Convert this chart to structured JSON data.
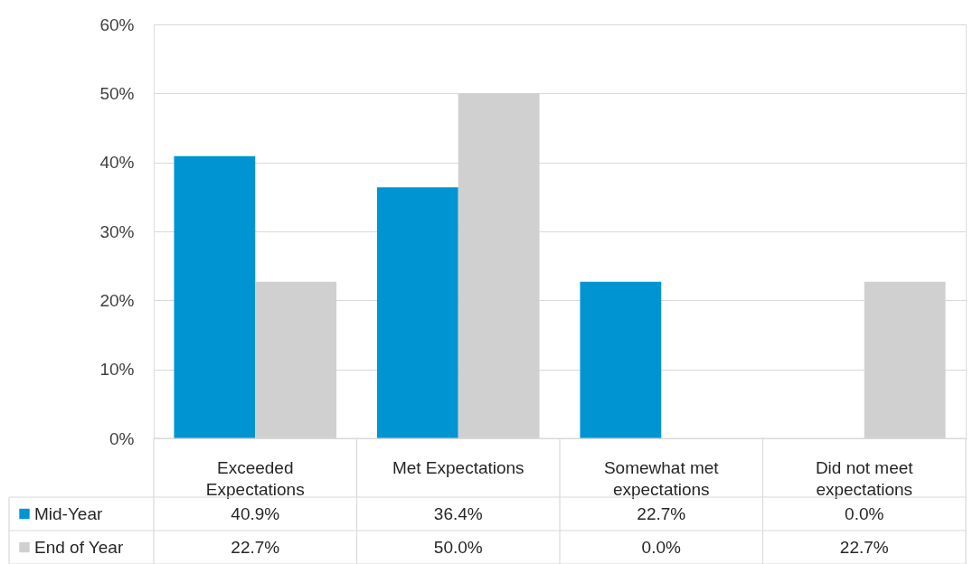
{
  "chart_data": {
    "type": "bar",
    "categories": [
      "Exceeded Expectations",
      "Met Expectations",
      "Somewhat met expectations",
      "Did not meet expectations"
    ],
    "series": [
      {
        "name": "Mid-Year",
        "color": "#0094d2",
        "values": [
          40.9,
          36.4,
          22.7,
          0.0
        ],
        "value_labels": [
          "40.9%",
          "36.4%",
          "22.7%",
          "0.0%"
        ]
      },
      {
        "name": "End of Year",
        "color": "#d0d0d0",
        "values": [
          22.7,
          50.0,
          0.0,
          22.7
        ],
        "value_labels": [
          "22.7%",
          "50.0%",
          "0.0%",
          "22.7%"
        ]
      }
    ],
    "ylim": [
      0,
      60
    ],
    "yticks": [
      {
        "value": 0,
        "label": "0%"
      },
      {
        "value": 10,
        "label": "10%"
      },
      {
        "value": 20,
        "label": "20%"
      },
      {
        "value": 30,
        "label": "30%"
      },
      {
        "value": 40,
        "label": "40%"
      },
      {
        "value": 50,
        "label": "50%"
      },
      {
        "value": 60,
        "label": "60%"
      }
    ],
    "grid": "y",
    "legend": "bottom"
  }
}
